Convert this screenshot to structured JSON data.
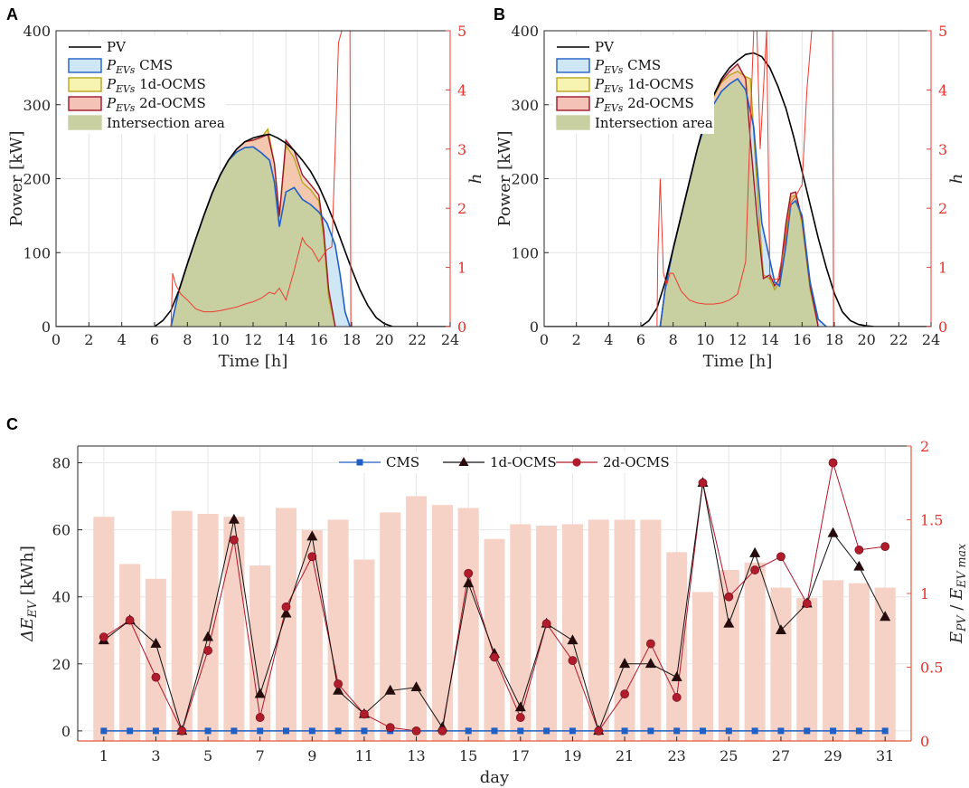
{
  "panels": {
    "a": "A",
    "b": "B",
    "c": "C"
  },
  "colors": {
    "pv": "#000000",
    "cms": "#1f5fc6",
    "cms_fill": "#cfe6f5",
    "ocms1": "#b8a51e",
    "ocms1_fill": "#f6d79a",
    "ocms2": "#a0162b",
    "ocms2_fill": "#f4c2b6",
    "intersection": "#c8cfa0",
    "h_line": "#ee3b30",
    "bars": "#f6d2c6",
    "right_axis_c": "#e8553a"
  },
  "chart_data": [
    {
      "id": "A",
      "type": "area",
      "xlabel": "Time [h]",
      "ylabel": "Power [kW]",
      "y2label": "h",
      "xlim": [
        0,
        24
      ],
      "ylim": [
        0,
        400
      ],
      "y2lim": [
        0,
        5
      ],
      "xticks": [
        0,
        2,
        4,
        6,
        8,
        10,
        12,
        14,
        16,
        18,
        20,
        22,
        24
      ],
      "yticks": [
        0,
        100,
        200,
        300,
        400
      ],
      "y2ticks": [
        0,
        1,
        2,
        3,
        4,
        5
      ],
      "legend": [
        "PV",
        "P_EVs CMS",
        "P_EVs 1d-OCMS",
        "P_EVs 2d-OCMS",
        "Intersection area"
      ],
      "legend_math_main": "P",
      "legend_math_sub": "EVs",
      "legend_suffixes": [
        "CMS",
        "1d-OCMS",
        "2d-OCMS"
      ],
      "series": [
        {
          "name": "PV",
          "x": [
            0,
            6,
            6.5,
            7,
            7.5,
            8,
            8.5,
            9,
            9.5,
            10,
            10.5,
            11,
            11.5,
            12,
            12.5,
            13,
            13.5,
            14,
            14.5,
            15,
            15.5,
            16,
            16.5,
            17,
            17.5,
            18,
            18.5,
            19,
            19.5,
            20,
            20.5,
            24
          ],
          "y": [
            0,
            0,
            8,
            22,
            50,
            85,
            118,
            150,
            180,
            205,
            225,
            240,
            250,
            255,
            258,
            260,
            255,
            248,
            238,
            225,
            210,
            190,
            165,
            138,
            108,
            78,
            50,
            28,
            12,
            4,
            0,
            0
          ]
        },
        {
          "name": "P_EVs CMS",
          "x": [
            7,
            7.5,
            8,
            8.5,
            9,
            9.5,
            10,
            10.5,
            11,
            11.5,
            12,
            12.5,
            13,
            13.3,
            13.6,
            14,
            14.5,
            15,
            15.5,
            16,
            16.5,
            17,
            17.3,
            17.6,
            17.9
          ],
          "y": [
            0,
            50,
            85,
            118,
            150,
            180,
            205,
            225,
            236,
            242,
            243,
            235,
            225,
            195,
            135,
            182,
            188,
            172,
            165,
            155,
            140,
            110,
            70,
            20,
            0
          ]
        },
        {
          "name": "P_EVs 1d-OCMS",
          "x": [
            7,
            7.5,
            8,
            8.5,
            9,
            9.5,
            10,
            10.5,
            11,
            11.5,
            12,
            12.5,
            12.9,
            13.3,
            13.6,
            14,
            14.5,
            15,
            15.5,
            16,
            16.3,
            16.6,
            17
          ],
          "y": [
            0,
            50,
            85,
            118,
            150,
            180,
            205,
            225,
            240,
            250,
            252,
            256,
            267,
            220,
            148,
            245,
            228,
            195,
            185,
            170,
            120,
            40,
            0
          ]
        },
        {
          "name": "P_EVs 2d-OCMS",
          "x": [
            7,
            7.5,
            8,
            8.5,
            9,
            9.5,
            10,
            10.5,
            11,
            11.5,
            12,
            12.5,
            12.9,
            13.3,
            13.6,
            14,
            14.5,
            15,
            15.5,
            16,
            16.3,
            16.6,
            17
          ],
          "y": [
            0,
            50,
            85,
            118,
            150,
            180,
            205,
            225,
            240,
            250,
            252,
            256,
            260,
            220,
            150,
            252,
            238,
            205,
            192,
            178,
            130,
            50,
            0
          ]
        },
        {
          "name": "h",
          "axis": "right",
          "x": [
            7,
            7.1,
            7.3,
            7.6,
            8,
            8.5,
            9,
            9.5,
            10,
            10.5,
            11,
            11.5,
            12,
            12.5,
            13,
            13.3,
            13.6,
            14,
            14.5,
            15,
            15.2,
            15.6,
            16,
            16.5,
            16.8,
            17,
            17.2,
            17.4,
            17.6,
            17.9,
            17.95
          ],
          "y": [
            0,
            0.9,
            0.7,
            0.55,
            0.45,
            0.3,
            0.25,
            0.25,
            0.27,
            0.3,
            0.33,
            0.38,
            0.42,
            0.48,
            0.58,
            0.55,
            0.65,
            0.45,
            0.95,
            1.5,
            1.4,
            1.3,
            1.1,
            1.3,
            1.35,
            3.0,
            4.8,
            5.0,
            5.0,
            5.0,
            0
          ]
        }
      ]
    },
    {
      "id": "B",
      "type": "area",
      "xlabel": "Time [h]",
      "ylabel": "Power [kW]",
      "y2label": "h",
      "xlim": [
        0,
        24
      ],
      "ylim": [
        0,
        400
      ],
      "y2lim": [
        0,
        5
      ],
      "xticks": [
        0,
        2,
        4,
        6,
        8,
        10,
        12,
        14,
        16,
        18,
        20,
        22,
        24
      ],
      "yticks": [
        0,
        100,
        200,
        300,
        400
      ],
      "y2ticks": [
        0,
        1,
        2,
        3,
        4,
        5
      ],
      "legend": [
        "PV",
        "P_EVs CMS",
        "P_EVs 1d-OCMS",
        "P_EVs 2d-OCMS",
        "Intersection area"
      ],
      "series": [
        {
          "name": "PV",
          "x": [
            0,
            6,
            6.5,
            7,
            7.5,
            8,
            8.5,
            9,
            9.5,
            10,
            10.5,
            11,
            11.5,
            12,
            12.5,
            13,
            13.5,
            14,
            14.5,
            15,
            15.5,
            16,
            16.5,
            17,
            17.5,
            18,
            18.5,
            19,
            19.5,
            20,
            20.5,
            24
          ],
          "y": [
            0,
            0,
            8,
            25,
            60,
            105,
            150,
            195,
            240,
            280,
            312,
            335,
            350,
            360,
            368,
            370,
            365,
            350,
            325,
            295,
            255,
            210,
            165,
            120,
            80,
            45,
            20,
            8,
            3,
            1,
            0,
            0
          ]
        },
        {
          "name": "P_EVs CMS",
          "x": [
            7.2,
            7.5,
            8,
            8.5,
            9,
            9.5,
            10,
            10.5,
            11,
            11.5,
            12,
            12.5,
            13,
            13.5,
            14,
            14.3,
            14.6,
            15,
            15.3,
            15.6,
            16,
            16.5,
            17,
            17.5
          ],
          "y": [
            0,
            50,
            105,
            150,
            195,
            240,
            275,
            300,
            318,
            328,
            335,
            320,
            270,
            140,
            90,
            60,
            55,
            110,
            165,
            170,
            150,
            60,
            10,
            0
          ]
        },
        {
          "name": "P_EVs 1d-OCMS",
          "x": [
            7.2,
            7.5,
            8,
            8.5,
            9,
            9.5,
            10,
            10.5,
            11,
            11.5,
            12,
            12.5,
            12.8,
            13.2,
            13.6,
            14,
            14.3,
            14.6,
            15,
            15.3,
            15.6,
            16,
            16.5,
            17
          ],
          "y": [
            0,
            50,
            105,
            150,
            195,
            240,
            280,
            310,
            330,
            340,
            345,
            338,
            335,
            190,
            70,
            65,
            50,
            60,
            130,
            175,
            178,
            140,
            50,
            0
          ]
        },
        {
          "name": "P_EVs 2d-OCMS",
          "x": [
            7.2,
            7.5,
            8,
            8.5,
            9,
            9.5,
            10,
            10.5,
            11,
            11.5,
            12,
            12.5,
            12.8,
            13.2,
            13.6,
            14,
            14.3,
            14.6,
            15,
            15.3,
            15.6,
            16,
            16.5,
            17
          ],
          "y": [
            0,
            50,
            105,
            150,
            195,
            240,
            282,
            312,
            332,
            345,
            355,
            335,
            250,
            150,
            65,
            70,
            55,
            65,
            140,
            180,
            182,
            145,
            55,
            0
          ]
        },
        {
          "name": "h",
          "axis": "right",
          "x": [
            7,
            7.05,
            7.2,
            7.4,
            7.6,
            7.8,
            8,
            8.5,
            9,
            9.5,
            10,
            10.5,
            11,
            11.5,
            12,
            12.5,
            12.8,
            13,
            13.2,
            13.4,
            13.8,
            14,
            14.5,
            15,
            15.3,
            15.6,
            16,
            16.3,
            16.6,
            17,
            17.5,
            17.9,
            17.95
          ],
          "y": [
            0,
            1.2,
            2.5,
            0.9,
            0.7,
            0.9,
            0.9,
            0.6,
            0.45,
            0.4,
            0.38,
            0.38,
            0.4,
            0.45,
            0.55,
            1.1,
            3.5,
            5.0,
            5.0,
            3.0,
            5.0,
            0.8,
            0.8,
            1.5,
            2.1,
            2.2,
            2.4,
            4.0,
            5.0,
            5.0,
            5.0,
            5.0,
            0
          ]
        }
      ]
    },
    {
      "id": "C",
      "type": "bar+line",
      "xlabel": "day",
      "ylabel": "ΔE_EV [kWh]",
      "ylabel_main": "ΔE",
      "ylabel_sub": "EV",
      "ylabel_unit": "[kWh]",
      "y2label": "E_PV / E_EV_max",
      "y2label_a": "E",
      "y2label_a_sub": "PV",
      "y2label_b": "E",
      "y2label_b_sub": "EV max",
      "xlim": [
        0,
        32
      ],
      "ylim": [
        -3,
        85
      ],
      "y2lim": [
        0,
        2
      ],
      "xticks": [
        1,
        3,
        5,
        7,
        9,
        11,
        13,
        15,
        17,
        19,
        21,
        23,
        25,
        27,
        29,
        31
      ],
      "yticks": [
        0,
        20,
        40,
        60,
        80
      ],
      "y2ticks": [
        0,
        0.5,
        1,
        1.5,
        2
      ],
      "legend": [
        "CMS",
        "1d-OCMS",
        "2d-OCMS"
      ],
      "days": [
        1,
        2,
        3,
        4,
        5,
        6,
        7,
        8,
        9,
        10,
        11,
        12,
        13,
        14,
        15,
        16,
        17,
        18,
        19,
        20,
        21,
        22,
        23,
        24,
        25,
        26,
        27,
        28,
        29,
        30,
        31
      ],
      "bars_ratio": [
        1.52,
        1.2,
        1.1,
        1.56,
        1.54,
        1.52,
        1.19,
        1.58,
        1.43,
        1.5,
        1.23,
        1.55,
        1.66,
        1.6,
        1.58,
        1.37,
        1.47,
        1.46,
        1.47,
        1.5,
        1.5,
        1.5,
        1.28,
        1.01,
        1.16,
        1.21,
        1.04,
        0.97,
        1.09,
        1.07,
        1.04
      ],
      "series": [
        {
          "name": "CMS",
          "values": [
            0,
            0,
            0,
            0,
            0,
            0,
            0,
            0,
            0,
            0,
            0,
            0,
            0,
            0,
            0,
            0,
            0,
            0,
            0,
            0,
            0,
            0,
            0,
            0,
            0,
            0,
            0,
            0,
            0,
            0,
            0
          ]
        },
        {
          "name": "1d-OCMS",
          "values": [
            27,
            33,
            26,
            0,
            28,
            63,
            11,
            35,
            58,
            12,
            5,
            12,
            13,
            1,
            44,
            23,
            7,
            32,
            27,
            0,
            20,
            20,
            16,
            74,
            32,
            53,
            30,
            38,
            59,
            49,
            34
          ]
        },
        {
          "name": "2d-OCMS",
          "values": [
            28,
            33,
            16,
            0,
            24,
            57,
            4,
            37,
            52,
            14,
            5,
            1,
            0,
            0,
            47,
            22,
            4,
            32,
            21,
            0,
            11,
            26,
            10,
            74,
            40,
            48,
            52,
            38,
            80,
            54,
            55
          ]
        }
      ]
    }
  ]
}
